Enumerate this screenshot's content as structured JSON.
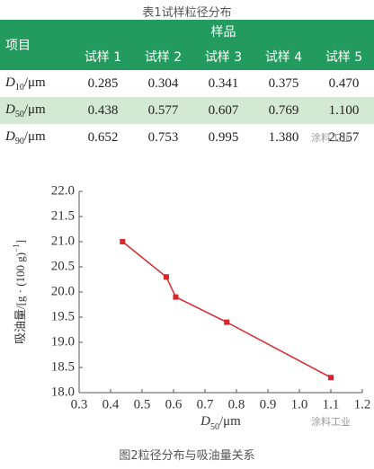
{
  "table": {
    "caption": "表1试样粒径分布",
    "header": {
      "item": "项目",
      "group": "样品",
      "samples": [
        "试样 1",
        "试样 2",
        "试样 3",
        "试样 4",
        "试样 5"
      ]
    },
    "rows": [
      {
        "label": {
          "symbol": "D",
          "sub": "10",
          "unit": "/μm"
        },
        "values": [
          "0.285",
          "0.304",
          "0.341",
          "0.375",
          "0.470"
        ]
      },
      {
        "label": {
          "symbol": "D",
          "sub": "50",
          "unit": "/μm"
        },
        "values": [
          "0.438",
          "0.577",
          "0.607",
          "0.769",
          "1.100"
        ]
      },
      {
        "label": {
          "symbol": "D",
          "sub": "90",
          "unit": "/μm"
        },
        "values": [
          "0.652",
          "0.753",
          "0.995",
          "1.380",
          "2.857"
        ]
      }
    ]
  },
  "watermark": "涂料工业",
  "chart_data": {
    "type": "line",
    "x": [
      0.438,
      0.577,
      0.607,
      0.769,
      1.1
    ],
    "values": [
      21.0,
      20.3,
      19.9,
      19.4,
      18.3
    ],
    "color": "#d9262c",
    "xlim": [
      0.3,
      1.2
    ],
    "xticks": [
      0.3,
      0.4,
      0.5,
      0.6,
      0.7,
      0.8,
      0.9,
      {
        "value": 1.0,
        "label": "1.0"
      },
      1.1,
      1.2
    ],
    "ylim": [
      18.0,
      22.0
    ],
    "yticks": [
      {
        "value": 18.0,
        "label": "18.0"
      },
      18.5,
      {
        "value": 19.0,
        "label": "19.0"
      },
      19.5,
      {
        "value": 20.0,
        "label": "20.0"
      },
      20.5,
      {
        "value": 21.0,
        "label": "21.0"
      },
      21.5,
      {
        "value": 22.0,
        "label": "22.0"
      }
    ],
    "xlabel": {
      "symbol": "D",
      "sub": "50",
      "unit": "/μm"
    },
    "ylabel": {
      "main": "吸油量/[g · (100 g)",
      "sup": "−1",
      "end": "]"
    },
    "caption": "图2粒径分布与吸油量关系"
  }
}
